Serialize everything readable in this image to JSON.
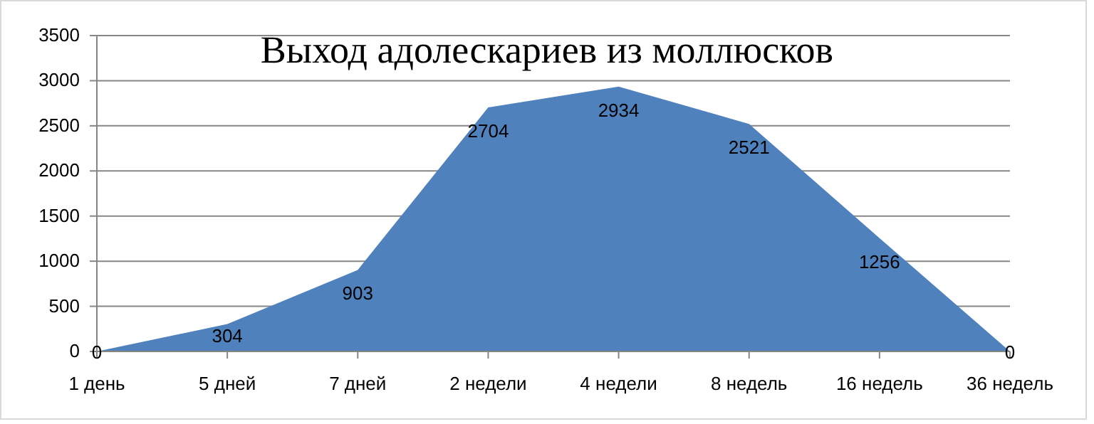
{
  "chart_data": {
    "type": "area",
    "title": "Выход адолескариев из моллюсков",
    "categories": [
      "1 день",
      "5 дней",
      "7 дней",
      "2 недели",
      "4 недели",
      "8 недель",
      "16 недель",
      "36 недель"
    ],
    "series": [
      {
        "color": "#4f81bd",
        "values": [
          0,
          304,
          903,
          2704,
          2934,
          2521,
          1256,
          0
        ]
      }
    ],
    "ylim": [
      0,
      3500
    ],
    "yticks": [
      0,
      500,
      1000,
      1500,
      2000,
      2500,
      3000,
      3500
    ],
    "grid": "y",
    "data_labels": true
  }
}
